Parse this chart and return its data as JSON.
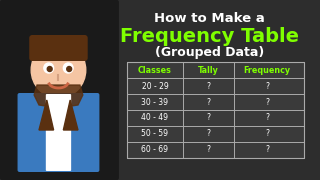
{
  "bg_color": "#2d2d2d",
  "title_line1": "How to Make a",
  "title_line2": "Frequency Table",
  "title_line3": "(Grouped Data)",
  "title_line1_color": "#ffffff",
  "title_line2_color": "#7fff00",
  "title_line3_color": "#ffffff",
  "table_headers": [
    "Classes",
    "Tally",
    "Frequency"
  ],
  "table_rows": [
    [
      "20 - 29",
      "?",
      "?"
    ],
    [
      "30 - 39",
      "?",
      "?"
    ],
    [
      "40 - 49",
      "?",
      "?"
    ],
    [
      "50 - 59",
      "?",
      "?"
    ],
    [
      "60 - 69",
      "?",
      "?"
    ]
  ],
  "header_color": "#7fff00",
  "cell_text_color": "#ffffff",
  "table_line_color": "#aaaaaa",
  "table_bg": "#3a3a3a",
  "avatar_placeholder": true
}
